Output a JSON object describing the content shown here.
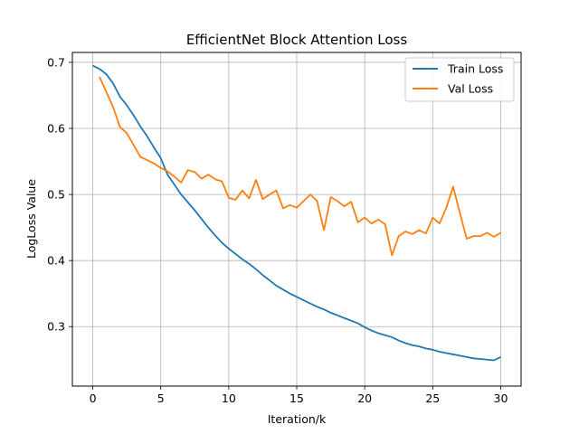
{
  "chart_data": {
    "type": "line",
    "title": "EfficientNet Block Attention Loss",
    "xlabel": "Iteration/k",
    "ylabel": "LogLoss Value",
    "xlim": [
      -1.5,
      31.5
    ],
    "ylim": [
      0.21,
      0.715
    ],
    "xticks": [
      0,
      5,
      10,
      15,
      20,
      25,
      30
    ],
    "yticks": [
      0.3,
      0.4,
      0.5,
      0.6,
      0.7
    ],
    "grid": true,
    "legend": "top-right",
    "series": [
      {
        "name": "Train Loss",
        "color": "#1f77b4",
        "x": [
          0,
          0.5,
          1,
          1.5,
          2,
          2.5,
          3,
          3.5,
          4,
          4.5,
          5,
          5.5,
          6,
          6.5,
          7,
          7.5,
          8,
          8.5,
          9,
          9.5,
          10,
          10.5,
          11,
          11.5,
          12,
          12.5,
          13,
          13.5,
          14,
          14.5,
          15,
          15.5,
          16,
          16.5,
          17,
          17.5,
          18,
          18.5,
          19,
          19.5,
          20,
          20.5,
          21,
          21.5,
          22,
          22.5,
          23,
          23.5,
          24,
          24.5,
          25,
          25.5,
          26,
          26.5,
          27,
          27.5,
          28,
          28.5,
          29,
          29.5,
          30
        ],
        "values": [
          0.695,
          0.69,
          0.682,
          0.668,
          0.648,
          0.635,
          0.62,
          0.603,
          0.588,
          0.571,
          0.555,
          0.53,
          0.515,
          0.5,
          0.488,
          0.476,
          0.463,
          0.45,
          0.438,
          0.427,
          0.418,
          0.41,
          0.402,
          0.395,
          0.387,
          0.378,
          0.37,
          0.362,
          0.356,
          0.35,
          0.345,
          0.34,
          0.335,
          0.33,
          0.326,
          0.321,
          0.317,
          0.313,
          0.309,
          0.305,
          0.299,
          0.294,
          0.29,
          0.287,
          0.284,
          0.279,
          0.275,
          0.272,
          0.27,
          0.267,
          0.265,
          0.262,
          0.26,
          0.258,
          0.256,
          0.254,
          0.252,
          0.251,
          0.25,
          0.249,
          0.254
        ]
      },
      {
        "name": "Val Loss",
        "color": "#ff7f0e",
        "x": [
          0.5,
          1,
          1.5,
          2,
          2.5,
          3,
          3.5,
          4,
          4.5,
          5,
          5.5,
          6,
          6.5,
          7,
          7.5,
          8,
          8.5,
          9,
          9.5,
          10,
          10.5,
          11,
          11.5,
          12,
          12.5,
          13,
          13.5,
          14,
          14.5,
          15,
          15.5,
          16,
          16.5,
          17,
          17.5,
          18,
          18.5,
          19,
          19.5,
          20,
          20.5,
          21,
          21.5,
          22,
          22.5,
          23,
          23.5,
          24,
          24.5,
          25,
          25.5,
          26,
          26.5,
          27,
          27.5,
          28,
          28.5,
          29,
          29.5,
          30
        ],
        "values": [
          0.678,
          0.655,
          0.632,
          0.602,
          0.593,
          0.575,
          0.557,
          0.552,
          0.547,
          0.54,
          0.535,
          0.527,
          0.518,
          0.537,
          0.534,
          0.524,
          0.53,
          0.523,
          0.52,
          0.495,
          0.492,
          0.506,
          0.494,
          0.522,
          0.493,
          0.5,
          0.506,
          0.479,
          0.484,
          0.48,
          0.49,
          0.5,
          0.49,
          0.446,
          0.496,
          0.49,
          0.482,
          0.489,
          0.458,
          0.465,
          0.456,
          0.462,
          0.455,
          0.408,
          0.437,
          0.444,
          0.44,
          0.446,
          0.441,
          0.465,
          0.456,
          0.48,
          0.512,
          0.472,
          0.433,
          0.437,
          0.437,
          0.442,
          0.436,
          0.442
        ]
      }
    ]
  }
}
